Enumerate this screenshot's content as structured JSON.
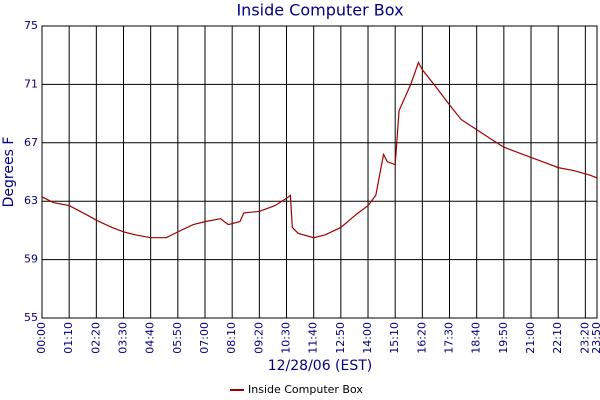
{
  "chart_data": {
    "type": "line",
    "title": "Inside Computer Box",
    "x_label": "12/28/06 (EST)",
    "y_label": "Degrees F",
    "x": [
      "00:00",
      "00:30",
      "01:10",
      "02:00",
      "02:20",
      "03:00",
      "03:30",
      "04:00",
      "04:40",
      "05:20",
      "05:50",
      "06:30",
      "07:00",
      "07:40",
      "08:00",
      "08:30",
      "08:40",
      "09:20",
      "10:00",
      "10:30",
      "10:40",
      "10:45",
      "11:00",
      "11:40",
      "12:10",
      "12:50",
      "13:30",
      "14:00",
      "14:20",
      "14:40",
      "14:50",
      "15:10",
      "15:20",
      "15:50",
      "16:10",
      "16:20",
      "16:50",
      "17:30",
      "18:00",
      "18:40",
      "19:20",
      "19:50",
      "20:30",
      "21:00",
      "21:40",
      "22:10",
      "22:50",
      "23:30",
      "23:50"
    ],
    "series": [
      {
        "name": "Inside Computer Box",
        "color": "#a00000",
        "values": [
          63.3,
          62.9,
          62.7,
          62.0,
          61.7,
          61.2,
          60.9,
          60.7,
          60.5,
          60.5,
          60.9,
          61.4,
          61.6,
          61.8,
          61.4,
          61.6,
          62.2,
          62.3,
          62.7,
          63.2,
          63.4,
          61.2,
          60.8,
          60.5,
          60.7,
          61.2,
          62.1,
          62.7,
          63.4,
          66.2,
          65.7,
          65.5,
          69.2,
          71.0,
          72.5,
          72.0,
          71.0,
          69.6,
          68.6,
          67.9,
          67.2,
          66.7,
          66.3,
          66.0,
          65.6,
          65.3,
          65.1,
          64.8,
          64.6
        ]
      }
    ],
    "xlim": [
      "00:00",
      "23:50"
    ],
    "xticks": [
      "00:00",
      "01:10",
      "02:20",
      "03:30",
      "04:40",
      "05:50",
      "07:00",
      "08:10",
      "09:20",
      "10:30",
      "11:40",
      "12:50",
      "14:00",
      "15:10",
      "16:20",
      "17:30",
      "18:40",
      "19:50",
      "21:00",
      "22:10",
      "23:20",
      "23:50"
    ],
    "ylim": [
      55,
      75
    ],
    "yticks": [
      55,
      59,
      63,
      67,
      71,
      75
    ],
    "grid": true,
    "legend": "bottom"
  }
}
